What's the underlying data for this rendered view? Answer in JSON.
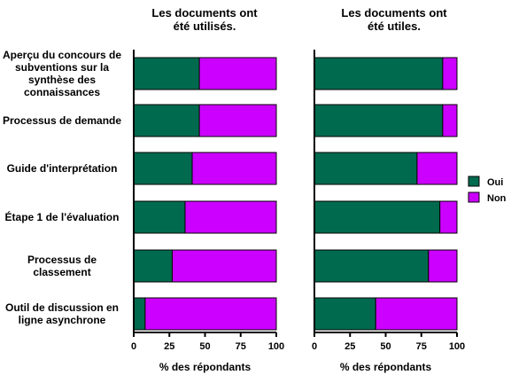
{
  "chart_data": {
    "type": "bar",
    "orientation": "horizontal",
    "stacked": true,
    "categories": [
      "Aperçu du concours de subventions sur la synthèse des connaissances",
      "Processus de demande",
      "Guide d'interprétation",
      "Étape 1 de l'évaluation",
      "Processus de classement",
      "Outil de discussion en ligne asynchrone"
    ],
    "category_lines": [
      [
        "Aperçu du concours de",
        "subventions sur la",
        "synthèse des",
        "connaissances"
      ],
      [
        "Processus de demande"
      ],
      [
        "Guide d'interprétation"
      ],
      [
        "Étape 1 de l'évaluation"
      ],
      [
        "Processus de",
        "classement"
      ],
      [
        "Outil de discussion en",
        "ligne asynchrone"
      ]
    ],
    "colors": {
      "Oui": "#006a4e",
      "Non": "#cc00ff"
    },
    "legend": {
      "placement": "right",
      "entries": [
        "Oui",
        "Non"
      ]
    },
    "panels": [
      {
        "title_lines": [
          "Les documents ont",
          "été utilisés."
        ],
        "xlabel": "% des répondants",
        "xlim": [
          0,
          100
        ],
        "xticks": [
          "0",
          "25",
          "50",
          "75",
          "100"
        ],
        "series": [
          {
            "name": "Oui",
            "values": [
              46,
              46,
              41,
              36,
              27,
              8
            ]
          },
          {
            "name": "Non",
            "values": [
              54,
              54,
              59,
              64,
              73,
              92
            ]
          }
        ]
      },
      {
        "title_lines": [
          "Les documents ont",
          "été utiles."
        ],
        "xlabel": "% des répondants",
        "xlim": [
          0,
          100
        ],
        "xticks": [
          "0",
          "25",
          "50",
          "75",
          "100"
        ],
        "series": [
          {
            "name": "Oui",
            "values": [
              90,
              90,
              72,
              88,
              80,
              43
            ]
          },
          {
            "name": "Non",
            "values": [
              10,
              10,
              28,
              12,
              20,
              57
            ]
          }
        ]
      }
    ]
  }
}
